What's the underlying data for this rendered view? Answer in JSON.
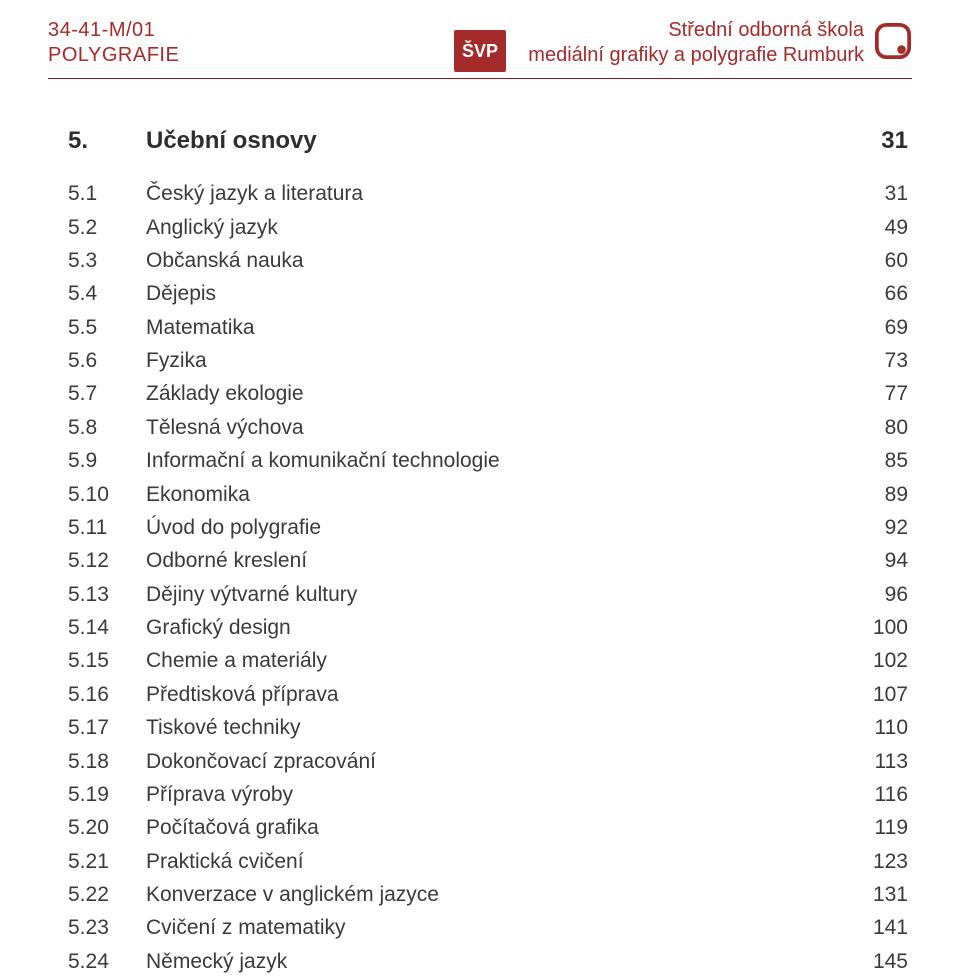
{
  "header": {
    "left_line1": "34-41-M/01",
    "left_line2": "POLYGRAFIE",
    "badge": "ŠVP",
    "right_line1": "Střední odborná škola",
    "right_line2": "mediální grafiky a polygrafie Rumburk"
  },
  "colors": {
    "accent": "#a52a2a",
    "text": "#3a3a3a",
    "rule": "#8b1a1a",
    "background": "#ffffff"
  },
  "section": {
    "num": "5.",
    "title": "Učební osnovy",
    "page": "31"
  },
  "toc": [
    {
      "num": "5.1",
      "title": "Český jazyk a literatura",
      "page": "31"
    },
    {
      "num": "5.2",
      "title": "Anglický jazyk",
      "page": "49"
    },
    {
      "num": "5.3",
      "title": "Občanská nauka",
      "page": "60"
    },
    {
      "num": "5.4",
      "title": "Dějepis",
      "page": "66"
    },
    {
      "num": "5.5",
      "title": "Matematika",
      "page": "69"
    },
    {
      "num": "5.6",
      "title": "Fyzika",
      "page": "73"
    },
    {
      "num": "5.7",
      "title": "Základy ekologie",
      "page": "77"
    },
    {
      "num": "5.8",
      "title": "Tělesná výchova",
      "page": "80"
    },
    {
      "num": "5.9",
      "title": "Informační a komunikační technologie",
      "page": "85"
    },
    {
      "num": "5.10",
      "title": "Ekonomika",
      "page": "89"
    },
    {
      "num": "5.11",
      "title": "Úvod do polygrafie",
      "page": "92"
    },
    {
      "num": "5.12",
      "title": "Odborné kreslení",
      "page": "94"
    },
    {
      "num": "5.13",
      "title": "Dějiny výtvarné kultury",
      "page": "96"
    },
    {
      "num": "5.14",
      "title": "Grafický design",
      "page": "100"
    },
    {
      "num": "5.15",
      "title": "Chemie a materiály",
      "page": "102"
    },
    {
      "num": "5.16",
      "title": "Předtisková příprava",
      "page": "107"
    },
    {
      "num": "5.17",
      "title": "Tiskové techniky",
      "page": "110"
    },
    {
      "num": "5.18",
      "title": "Dokončovací zpracování",
      "page": "113"
    },
    {
      "num": "5.19",
      "title": "Příprava výroby",
      "page": "116"
    },
    {
      "num": "5.20",
      "title": "Počítačová grafika",
      "page": "119"
    },
    {
      "num": "5.21",
      "title": "Praktická cvičení",
      "page": "123"
    },
    {
      "num": "5.22",
      "title": "Konverzace v anglickém jazyce",
      "page": "131"
    },
    {
      "num": "5.23",
      "title": "Cvičení z matematiky",
      "page": "141"
    },
    {
      "num": "5.24",
      "title": "Německý jazyk",
      "page": "145"
    }
  ]
}
